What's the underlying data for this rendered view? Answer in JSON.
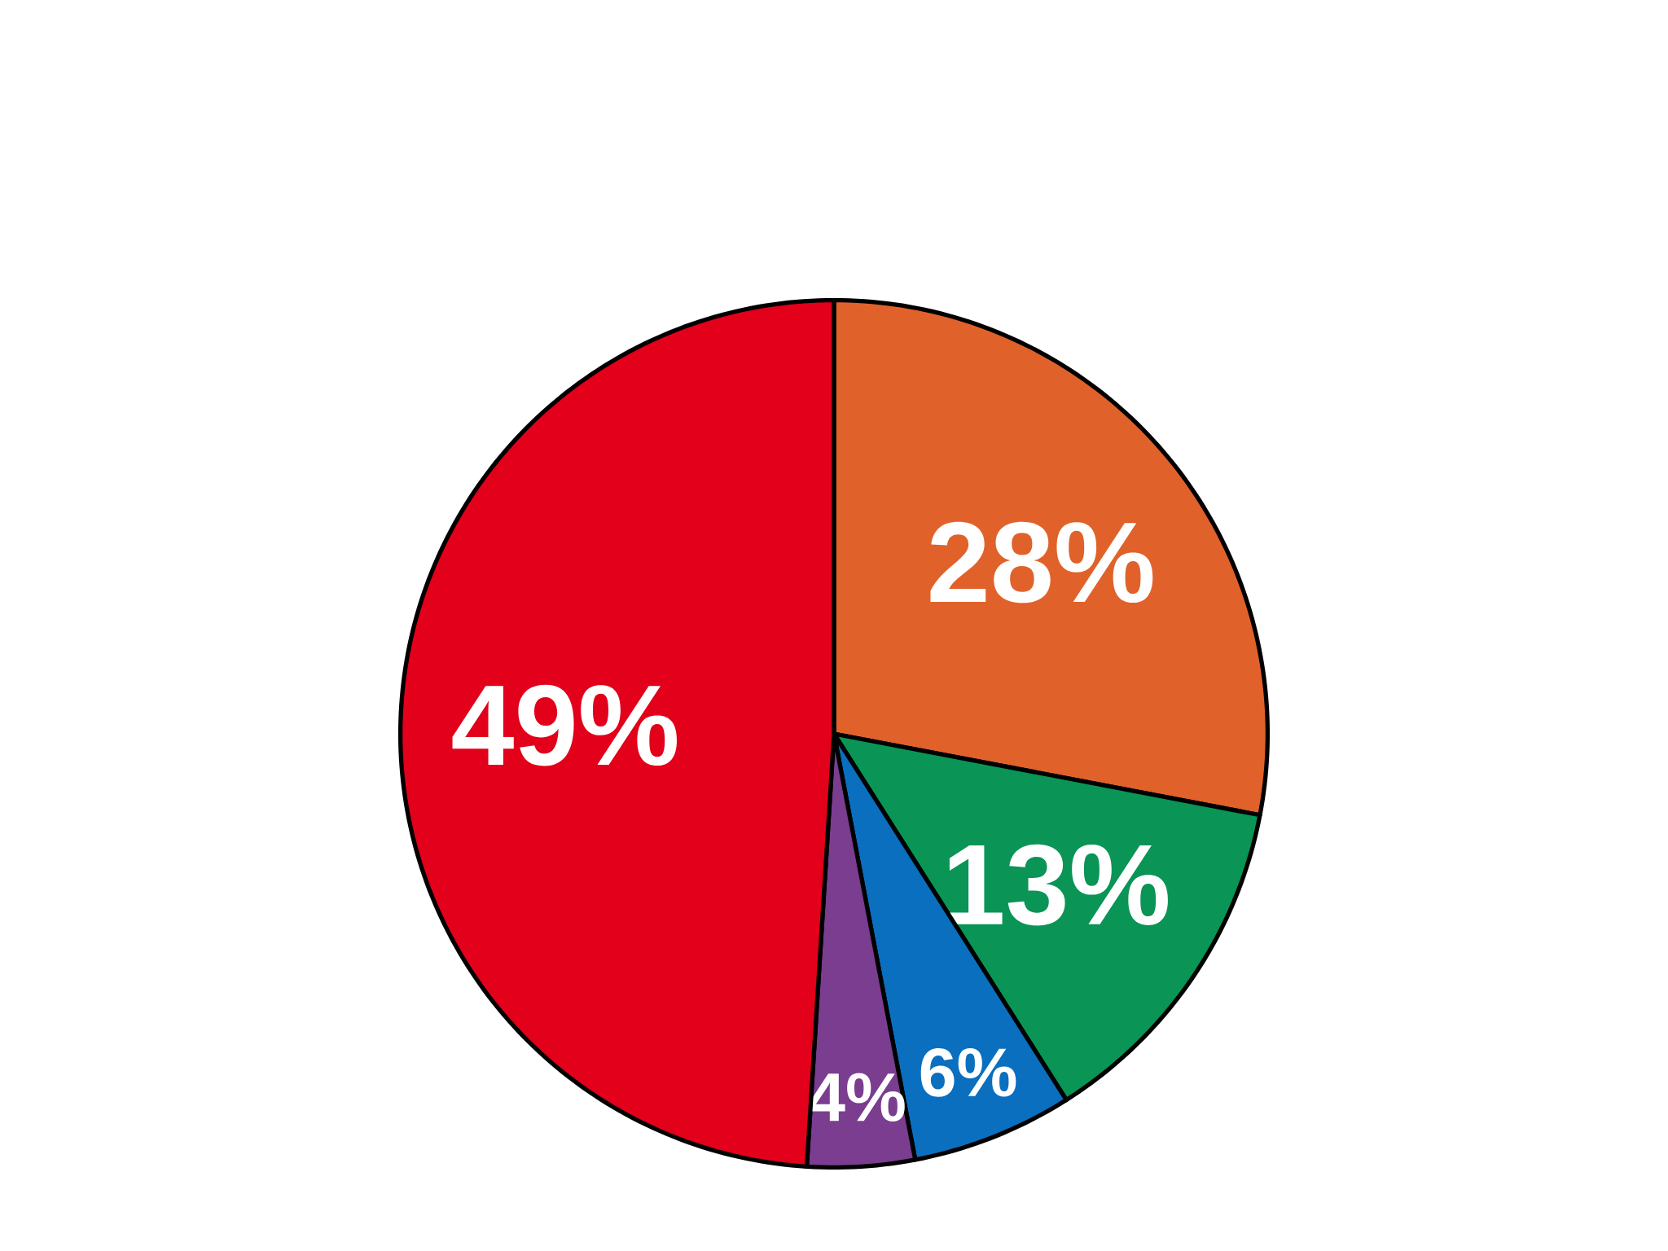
{
  "chart_data": {
    "type": "pie",
    "categories": [
      null,
      null,
      null,
      null,
      null
    ],
    "values": [
      28,
      13,
      6,
      4,
      49
    ],
    "colors": [
      "#e0622a",
      "#0a9455",
      "#0a6fbf",
      "#7a3d8f",
      "#e2001a"
    ],
    "value_labels": [
      "28%",
      "13%",
      "6%",
      "4%",
      "49%"
    ]
  }
}
